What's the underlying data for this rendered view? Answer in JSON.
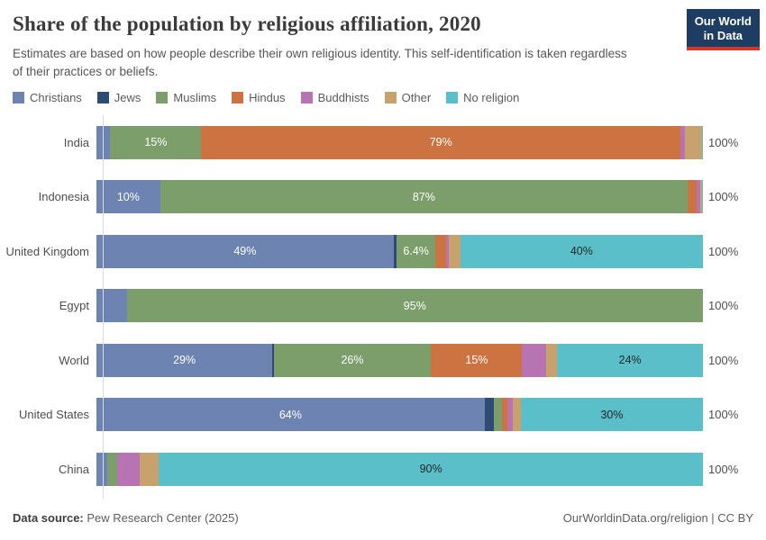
{
  "header": {
    "title": "Share of the population by religious affiliation, 2020",
    "subtitle": "Estimates are based on how people describe their own religious identity. This self-identification is taken regardless of their practices or beliefs.",
    "logo_line1": "Our World",
    "logo_line2": "in Data",
    "logo_bg_color": "#1d3d63",
    "logo_stripe_color": "#d8352a"
  },
  "chart_data": {
    "type": "bar",
    "stacked": true,
    "orientation": "horizontal",
    "grid": false,
    "legend_position": "top",
    "xlim": [
      0,
      100
    ],
    "categories": [
      "India",
      "Indonesia",
      "United Kingdom",
      "Egypt",
      "World",
      "United States",
      "China"
    ],
    "series": [
      {
        "name": "Christians",
        "color": "#6d83b2",
        "values": [
          2.3,
          10.5,
          49,
          5,
          29,
          64,
          1.8
        ],
        "labels": [
          "",
          "10%",
          "49%",
          "",
          "29%",
          "64%",
          ""
        ]
      },
      {
        "name": "Jews",
        "color": "#2d4b73",
        "values": [
          0,
          0,
          0.5,
          0,
          0.2,
          1.6,
          0
        ],
        "labels": [
          "",
          "",
          "",
          "",
          "",
          "",
          ""
        ]
      },
      {
        "name": "Muslims",
        "color": "#7b9e6b",
        "values": [
          15,
          87,
          6.4,
          95,
          26,
          1.2,
          1.6
        ],
        "labels": [
          "15%",
          "87%",
          "6.4%",
          "95%",
          "26%",
          "",
          ""
        ]
      },
      {
        "name": "Hindus",
        "color": "#cd7342",
        "values": [
          79,
          1.5,
          1.7,
          0,
          15,
          0.9,
          0
        ],
        "labels": [
          "79%",
          "",
          "",
          "",
          "15%",
          "",
          ""
        ]
      },
      {
        "name": "Buddhists",
        "color": "#b873b2",
        "values": [
          0.8,
          0.6,
          0.5,
          0,
          4,
          1,
          3.7
        ],
        "labels": [
          "",
          "",
          "",
          "",
          "",
          "",
          ""
        ]
      },
      {
        "name": "Other",
        "color": "#c7a26d",
        "values": [
          2.7,
          0.3,
          1.9,
          0,
          1.8,
          1.3,
          3.2
        ],
        "labels": [
          "",
          "",
          "",
          "",
          "",
          "",
          ""
        ]
      },
      {
        "name": "No religion",
        "color": "#5abfc9",
        "values": [
          0.2,
          0.1,
          40,
          0,
          24,
          30,
          89.7
        ],
        "labels": [
          "",
          "",
          "40%",
          "",
          "24%",
          "30%",
          "90%"
        ]
      }
    ],
    "row_total_label": "100%",
    "label_color_on_dark": "#ffffff",
    "label_color_on_light": "#262626"
  },
  "footer": {
    "source_prefix": "Data source:",
    "source_text": " Pew Research Center (2025)",
    "link_text": "OurWorldinData.org/religion | CC BY"
  }
}
